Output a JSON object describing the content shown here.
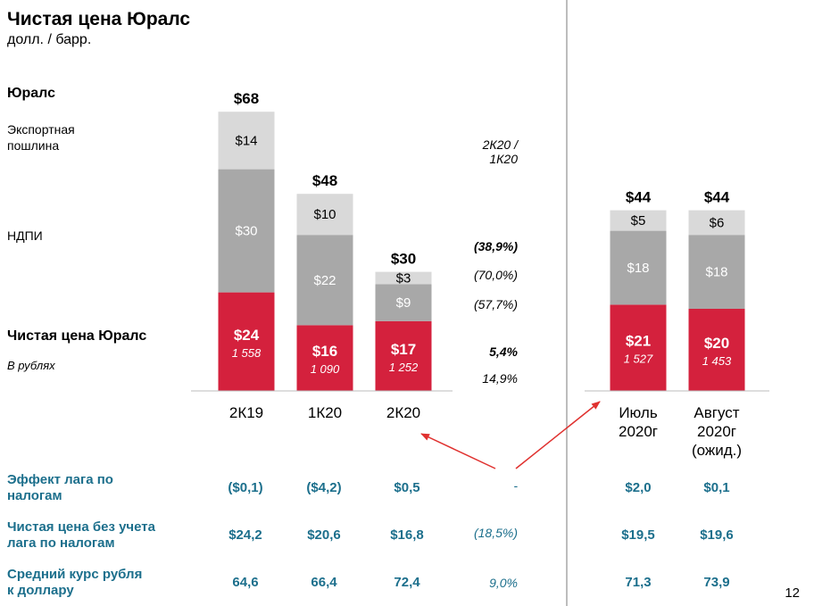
{
  "title": "Чистая цена Юралс",
  "subtitle": "долл. / барр.",
  "legend": {
    "urals": "Юралс",
    "export_duty_1": "Экспортная",
    "export_duty_2": "пошлина",
    "mineral_tax": "НДПИ",
    "net_price": "Чистая цена Юралс",
    "in_rubles": "В рублях"
  },
  "ratio_header_1": "2К20 /",
  "ratio_header_2": "1К20",
  "ratios": {
    "total": "(38,9%)",
    "export_duty": "(70,0%)",
    "mineral_tax": "(57,7%)",
    "net_price": "5,4%",
    "rubles": "14,9%"
  },
  "colors": {
    "net_price": "#d4213d",
    "mineral_tax": "#a8a8a8",
    "export_duty": "#d9d9d9",
    "table_text": "#1c6f8c",
    "arrow": "#e0312f",
    "divider": "#bdbdbd"
  },
  "chart_data": {
    "type": "bar",
    "stacked": true,
    "categories": [
      "2К19",
      "1К20",
      "2К20",
      "Июль 2020г",
      "Август 2020г (ожид.)"
    ],
    "category_lines": [
      [
        "2К19"
      ],
      [
        "1К20"
      ],
      [
        "2К20"
      ],
      [
        "Июль",
        "2020г"
      ],
      [
        "Август",
        "2020г",
        "(ожид.)"
      ]
    ],
    "series": [
      {
        "name": "Чистая цена Юралс",
        "values": [
          24,
          16,
          17,
          21,
          20
        ],
        "labels": [
          "$24",
          "$16",
          "$17",
          "$21",
          "$20"
        ]
      },
      {
        "name": "НДПИ",
        "values": [
          30,
          22,
          9,
          18,
          18
        ],
        "labels": [
          "$30",
          "$22",
          "$9",
          "$18",
          "$18"
        ]
      },
      {
        "name": "Экспортная пошлина",
        "values": [
          14,
          10,
          3,
          5,
          6
        ],
        "labels": [
          "$14",
          "$10",
          "$3",
          "$5",
          "$6"
        ]
      }
    ],
    "totals": [
      68,
      48,
      30,
      44,
      44
    ],
    "total_labels": [
      "$68",
      "$48",
      "$30",
      "$44",
      "$44"
    ],
    "rubles": [
      "1 558",
      "1 090",
      "1 252",
      "1 527",
      "1 453"
    ]
  },
  "table": {
    "rows": [
      {
        "label": [
          "Эффект лага по",
          "налогам"
        ],
        "values": [
          "($0,1)",
          "($4,2)",
          "$0,5",
          "$2,0",
          "$0,1"
        ],
        "ratio": "-"
      },
      {
        "label": [
          "Чистая цена без учета",
          "лага по налогам"
        ],
        "values": [
          "$24,2",
          "$20,6",
          "$16,8",
          "$19,5",
          "$19,6"
        ],
        "ratio": "(18,5%)"
      },
      {
        "label": [
          "Средний курс рубля",
          "к доллару"
        ],
        "values": [
          "64,6",
          "66,4",
          "72,4",
          "71,3",
          "73,9"
        ],
        "ratio": "9,0%"
      }
    ]
  },
  "page_number": "12"
}
